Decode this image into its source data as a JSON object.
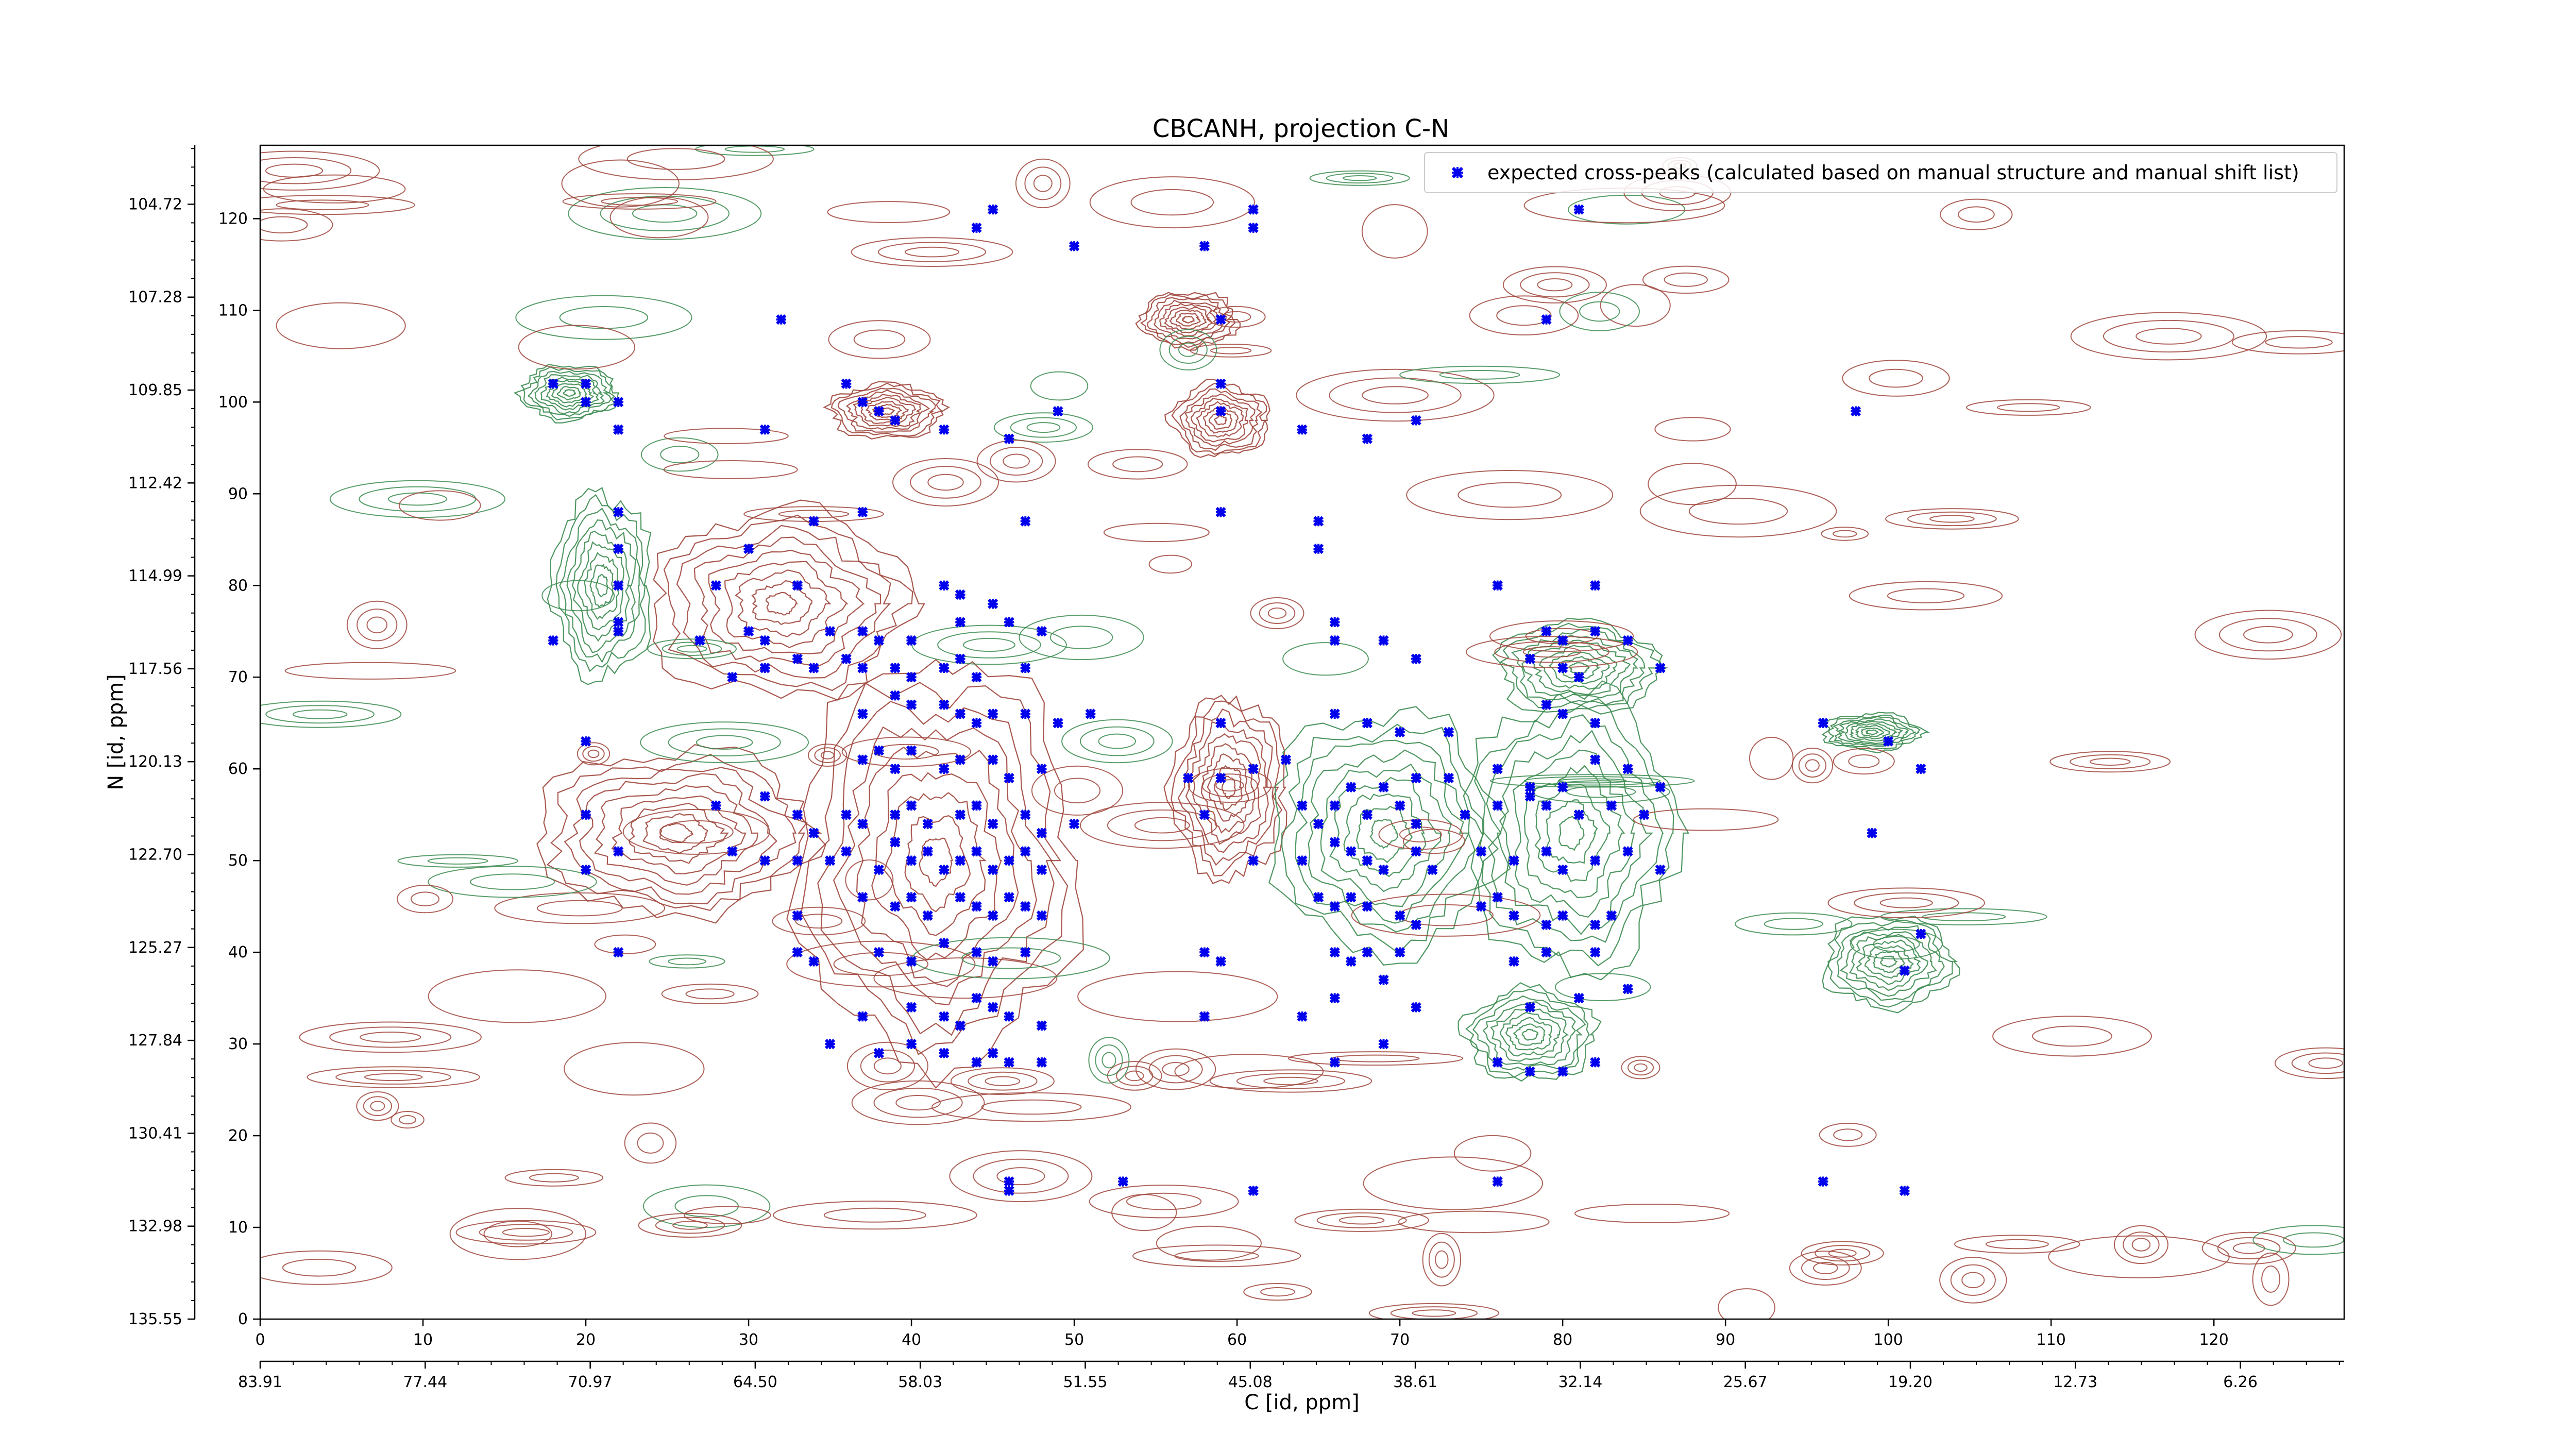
{
  "chart_data": {
    "type": "contour",
    "title": "CBCANH, projection C-N",
    "xlabel": "C [id, ppm]",
    "ylabel": "N [id, ppm]",
    "x_index_range": [
      0,
      128
    ],
    "y_index_range": [
      0,
      128
    ],
    "x_index_ticks": [
      "0",
      "10",
      "20",
      "30",
      "40",
      "50",
      "60",
      "70",
      "80",
      "90",
      "100",
      "110",
      "120"
    ],
    "y_index_ticks": [
      "0",
      "10",
      "20",
      "30",
      "40",
      "50",
      "60",
      "70",
      "80",
      "90",
      "100",
      "110",
      "120"
    ],
    "x_ppm_ticks": [
      "83.91",
      "77.44",
      "70.97",
      "64.50",
      "58.03",
      "51.55",
      "45.08",
      "38.61",
      "32.14",
      "25.67",
      "19.20",
      "12.73",
      "6.26"
    ],
    "y_ppm_ticks": [
      "135.55",
      "132.98",
      "130.41",
      "127.84",
      "125.27",
      "122.70",
      "120.13",
      "117.56",
      "114.99",
      "112.42",
      "109.85",
      "107.28",
      "104.72"
    ],
    "legend": {
      "position": "top-right",
      "entries": [
        {
          "label": "expected cross-peaks (calculated based on manual structure and manual shift list)",
          "color": "#0000ee",
          "marker": "x"
        }
      ]
    },
    "contour_colors": {
      "positive": "#a0463c",
      "negative": "#3c8c50"
    },
    "contour_regions": [
      {
        "sign": "positive",
        "x": [
          33,
          50
        ],
        "y": [
          28,
          72
        ]
      },
      {
        "sign": "positive",
        "x": [
          17,
          34
        ],
        "y": [
          44,
          62
        ]
      },
      {
        "sign": "positive",
        "x": [
          24,
          40
        ],
        "y": [
          68,
          88
        ]
      },
      {
        "sign": "positive",
        "x": [
          35,
          42
        ],
        "y": [
          96,
          102
        ]
      },
      {
        "sign": "positive",
        "x": [
          56,
          62
        ],
        "y": [
          94,
          102
        ]
      },
      {
        "sign": "positive",
        "x": [
          56,
          63
        ],
        "y": [
          48,
          68
        ]
      },
      {
        "sign": "positive",
        "x": [
          54,
          60
        ],
        "y": [
          106,
          112
        ]
      },
      {
        "sign": "negative",
        "x": [
          62,
          76
        ],
        "y": [
          40,
          66
        ]
      },
      {
        "sign": "negative",
        "x": [
          74,
          87
        ],
        "y": [
          38,
          68
        ]
      },
      {
        "sign": "negative",
        "x": [
          76,
          86
        ],
        "y": [
          66,
          76
        ]
      },
      {
        "sign": "negative",
        "x": [
          74,
          82
        ],
        "y": [
          26,
          36
        ]
      },
      {
        "sign": "negative",
        "x": [
          18,
          24
        ],
        "y": [
          70,
          90
        ]
      },
      {
        "sign": "negative",
        "x": [
          16,
          22
        ],
        "y": [
          98,
          104
        ]
      },
      {
        "sign": "negative",
        "x": [
          96,
          104
        ],
        "y": [
          34,
          44
        ]
      },
      {
        "sign": "negative",
        "x": [
          96,
          102
        ],
        "y": [
          62,
          66
        ]
      }
    ],
    "peaks": [
      [
        45,
        121
      ],
      [
        44,
        119
      ],
      [
        50,
        117
      ],
      [
        58,
        117
      ],
      [
        61,
        121
      ],
      [
        61,
        119
      ],
      [
        81,
        121
      ],
      [
        32,
        109
      ],
      [
        59,
        109
      ],
      [
        79,
        109
      ],
      [
        18,
        102
      ],
      [
        20,
        102
      ],
      [
        20,
        100
      ],
      [
        22,
        100
      ],
      [
        22,
        97
      ],
      [
        31,
        97
      ],
      [
        36,
        102
      ],
      [
        37,
        100
      ],
      [
        38,
        99
      ],
      [
        39,
        98
      ],
      [
        42,
        97
      ],
      [
        46,
        96
      ],
      [
        49,
        99
      ],
      [
        59,
        102
      ],
      [
        59,
        99
      ],
      [
        64,
        97
      ],
      [
        68,
        96
      ],
      [
        71,
        98
      ],
      [
        98,
        99
      ],
      [
        22,
        88
      ],
      [
        22,
        84
      ],
      [
        30,
        84
      ],
      [
        34,
        87
      ],
      [
        37,
        88
      ],
      [
        47,
        87
      ],
      [
        59,
        88
      ],
      [
        65,
        87
      ],
      [
        65,
        84
      ],
      [
        22,
        80
      ],
      [
        28,
        80
      ],
      [
        33,
        80
      ],
      [
        42,
        80
      ],
      [
        43,
        79
      ],
      [
        45,
        78
      ],
      [
        76,
        80
      ],
      [
        82,
        80
      ],
      [
        18,
        74
      ],
      [
        22,
        76
      ],
      [
        22,
        75
      ],
      [
        27,
        74
      ],
      [
        30,
        75
      ],
      [
        31,
        74
      ],
      [
        35,
        75
      ],
      [
        37,
        75
      ],
      [
        38,
        74
      ],
      [
        40,
        74
      ],
      [
        43,
        76
      ],
      [
        46,
        76
      ],
      [
        48,
        75
      ],
      [
        29,
        70
      ],
      [
        31,
        71
      ],
      [
        33,
        72
      ],
      [
        34,
        71
      ],
      [
        36,
        72
      ],
      [
        37,
        71
      ],
      [
        39,
        71
      ],
      [
        40,
        70
      ],
      [
        42,
        71
      ],
      [
        43,
        72
      ],
      [
        44,
        70
      ],
      [
        47,
        71
      ],
      [
        66,
        76
      ],
      [
        66,
        74
      ],
      [
        69,
        74
      ],
      [
        71,
        72
      ],
      [
        79,
        75
      ],
      [
        80,
        74
      ],
      [
        82,
        75
      ],
      [
        84,
        74
      ],
      [
        86,
        71
      ],
      [
        78,
        72
      ],
      [
        80,
        71
      ],
      [
        81,
        70
      ],
      [
        37,
        66
      ],
      [
        39,
        68
      ],
      [
        40,
        67
      ],
      [
        42,
        67
      ],
      [
        43,
        66
      ],
      [
        44,
        65
      ],
      [
        45,
        66
      ],
      [
        47,
        66
      ],
      [
        49,
        65
      ],
      [
        51,
        66
      ],
      [
        59,
        65
      ],
      [
        66,
        66
      ],
      [
        68,
        65
      ],
      [
        70,
        64
      ],
      [
        73,
        64
      ],
      [
        79,
        67
      ],
      [
        80,
        66
      ],
      [
        82,
        65
      ],
      [
        96,
        65
      ],
      [
        100,
        63
      ],
      [
        20,
        63
      ],
      [
        37,
        61
      ],
      [
        38,
        62
      ],
      [
        39,
        60
      ],
      [
        40,
        62
      ],
      [
        42,
        60
      ],
      [
        43,
        61
      ],
      [
        45,
        61
      ],
      [
        46,
        59
      ],
      [
        48,
        60
      ],
      [
        57,
        59
      ],
      [
        59,
        59
      ],
      [
        61,
        60
      ],
      [
        63,
        61
      ],
      [
        67,
        58
      ],
      [
        69,
        58
      ],
      [
        71,
        59
      ],
      [
        73,
        59
      ],
      [
        76,
        60
      ],
      [
        78,
        58
      ],
      [
        80,
        58
      ],
      [
        82,
        61
      ],
      [
        84,
        60
      ],
      [
        86,
        58
      ],
      [
        102,
        60
      ],
      [
        20,
        55
      ],
      [
        28,
        56
      ],
      [
        31,
        57
      ],
      [
        33,
        55
      ],
      [
        34,
        53
      ],
      [
        36,
        55
      ],
      [
        37,
        54
      ],
      [
        39,
        55
      ],
      [
        40,
        56
      ],
      [
        41,
        54
      ],
      [
        43,
        55
      ],
      [
        44,
        56
      ],
      [
        45,
        54
      ],
      [
        47,
        55
      ],
      [
        48,
        53
      ],
      [
        50,
        54
      ],
      [
        58,
        55
      ],
      [
        64,
        56
      ],
      [
        65,
        54
      ],
      [
        66,
        56
      ],
      [
        68,
        55
      ],
      [
        70,
        56
      ],
      [
        71,
        54
      ],
      [
        74,
        55
      ],
      [
        76,
        56
      ],
      [
        78,
        57
      ],
      [
        79,
        56
      ],
      [
        81,
        55
      ],
      [
        83,
        56
      ],
      [
        85,
        55
      ],
      [
        99,
        53
      ],
      [
        20,
        49
      ],
      [
        22,
        51
      ],
      [
        29,
        51
      ],
      [
        31,
        50
      ],
      [
        33,
        50
      ],
      [
        35,
        50
      ],
      [
        36,
        51
      ],
      [
        38,
        49
      ],
      [
        39,
        52
      ],
      [
        40,
        50
      ],
      [
        41,
        51
      ],
      [
        42,
        49
      ],
      [
        43,
        50
      ],
      [
        44,
        51
      ],
      [
        45,
        49
      ],
      [
        46,
        50
      ],
      [
        47,
        51
      ],
      [
        48,
        49
      ],
      [
        61,
        50
      ],
      [
        64,
        50
      ],
      [
        66,
        52
      ],
      [
        67,
        51
      ],
      [
        68,
        50
      ],
      [
        69,
        49
      ],
      [
        71,
        51
      ],
      [
        72,
        49
      ],
      [
        75,
        51
      ],
      [
        77,
        50
      ],
      [
        79,
        51
      ],
      [
        80,
        49
      ],
      [
        82,
        50
      ],
      [
        84,
        51
      ],
      [
        86,
        49
      ],
      [
        33,
        44
      ],
      [
        37,
        46
      ],
      [
        39,
        45
      ],
      [
        40,
        46
      ],
      [
        41,
        44
      ],
      [
        43,
        46
      ],
      [
        44,
        45
      ],
      [
        45,
        44
      ],
      [
        46,
        46
      ],
      [
        47,
        45
      ],
      [
        48,
        44
      ],
      [
        65,
        46
      ],
      [
        66,
        45
      ],
      [
        67,
        46
      ],
      [
        68,
        45
      ],
      [
        70,
        44
      ],
      [
        71,
        43
      ],
      [
        75,
        45
      ],
      [
        76,
        46
      ],
      [
        77,
        44
      ],
      [
        79,
        43
      ],
      [
        80,
        44
      ],
      [
        82,
        43
      ],
      [
        83,
        44
      ],
      [
        102,
        42
      ],
      [
        22,
        40
      ],
      [
        33,
        40
      ],
      [
        34,
        39
      ],
      [
        38,
        40
      ],
      [
        40,
        39
      ],
      [
        42,
        41
      ],
      [
        44,
        40
      ],
      [
        45,
        39
      ],
      [
        47,
        40
      ],
      [
        58,
        40
      ],
      [
        59,
        39
      ],
      [
        66,
        40
      ],
      [
        67,
        39
      ],
      [
        68,
        40
      ],
      [
        70,
        40
      ],
      [
        77,
        39
      ],
      [
        79,
        40
      ],
      [
        82,
        40
      ],
      [
        101,
        38
      ],
      [
        37,
        33
      ],
      [
        40,
        34
      ],
      [
        42,
        33
      ],
      [
        43,
        32
      ],
      [
        44,
        35
      ],
      [
        45,
        34
      ],
      [
        46,
        33
      ],
      [
        48,
        32
      ],
      [
        58,
        33
      ],
      [
        64,
        33
      ],
      [
        66,
        35
      ],
      [
        69,
        37
      ],
      [
        71,
        34
      ],
      [
        78,
        34
      ],
      [
        81,
        35
      ],
      [
        84,
        36
      ],
      [
        35,
        30
      ],
      [
        38,
        29
      ],
      [
        40,
        30
      ],
      [
        42,
        29
      ],
      [
        44,
        28
      ],
      [
        45,
        29
      ],
      [
        46,
        28
      ],
      [
        48,
        28
      ],
      [
        66,
        28
      ],
      [
        69,
        30
      ],
      [
        76,
        28
      ],
      [
        78,
        27
      ],
      [
        80,
        27
      ],
      [
        82,
        28
      ],
      [
        46,
        14
      ],
      [
        46,
        15
      ],
      [
        53,
        15
      ],
      [
        61,
        14
      ],
      [
        76,
        15
      ],
      [
        96,
        15
      ],
      [
        101,
        14
      ]
    ]
  }
}
